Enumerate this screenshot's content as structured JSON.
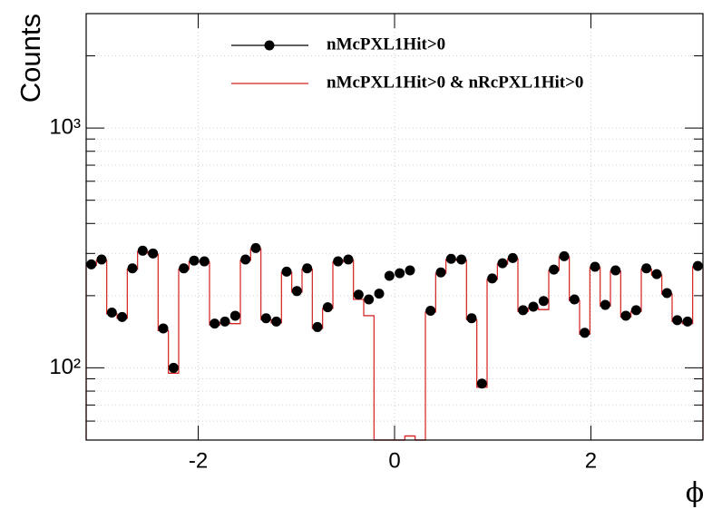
{
  "chart_data": {
    "type": "histogram",
    "ylabel": "Counts",
    "xlabel": "ϕ",
    "log_y": true,
    "grid": true,
    "legend": "top",
    "xlim": [
      -3.1416,
      3.1416
    ],
    "ylim": [
      50,
      3000
    ],
    "xticks": [
      -2,
      0,
      2
    ],
    "yticks": [
      {
        "value": 100,
        "label": "10²"
      },
      {
        "value": 1000,
        "label": "10³"
      }
    ],
    "yminorticks": [
      60,
      70,
      80,
      90,
      200,
      300,
      400,
      500,
      600,
      700,
      800,
      900,
      2000,
      3000
    ],
    "bins": [
      -3.1416,
      -3.0369,
      -2.9322,
      -2.8274,
      -2.7227,
      -2.618,
      -2.5133,
      -2.4086,
      -2.3038,
      -2.1991,
      -2.0944,
      -1.9897,
      -1.885,
      -1.7802,
      -1.6755,
      -1.5708,
      -1.4661,
      -1.3614,
      -1.2566,
      -1.1519,
      -1.0472,
      -0.9425,
      -0.8378,
      -0.733,
      -0.6283,
      -0.5236,
      -0.4189,
      -0.3142,
      -0.2094,
      -0.1047,
      0,
      0.1047,
      0.2094,
      0.3142,
      0.4189,
      0.5236,
      0.6283,
      0.733,
      0.8378,
      0.9425,
      1.0472,
      1.1519,
      1.2566,
      1.3614,
      1.4661,
      1.5708,
      1.6755,
      1.7802,
      1.885,
      1.9897,
      2.0944,
      2.1991,
      2.3038,
      2.4086,
      2.5133,
      2.618,
      2.7227,
      2.8274,
      2.9322,
      3.0369,
      3.1416
    ],
    "series": [
      {
        "name": "nMcPXL1Hit>0",
        "color": "#000000",
        "style": "markers",
        "values": [
          270,
          283,
          170,
          163,
          260,
          308,
          300,
          146,
          100,
          260,
          280,
          278,
          153,
          156,
          165,
          283,
          316,
          161,
          156,
          252,
          209,
          260,
          148,
          179,
          278,
          283,
          202,
          193,
          204,
          242,
          248,
          255,
          null,
          173,
          250,
          285,
          283,
          161,
          86,
          236,
          273,
          287,
          174,
          180,
          190,
          257,
          292,
          193,
          140,
          264,
          183,
          255,
          165,
          174,
          260,
          246,
          205,
          158,
          156,
          266
        ]
      },
      {
        "name": "nMcPXL1Hit>0 & nRcPXL1Hit>0",
        "color": "#d42020",
        "style": "step",
        "values": [
          268,
          281,
          168,
          161,
          258,
          306,
          298,
          143,
          95,
          258,
          278,
          276,
          151,
          154,
          153,
          281,
          314,
          159,
          154,
          250,
          207,
          258,
          146,
          177,
          276,
          281,
          193,
          165,
          0,
          0,
          0,
          52,
          0,
          171,
          248,
          283,
          281,
          159,
          83,
          234,
          271,
          285,
          172,
          178,
          175,
          255,
          290,
          191,
          138,
          262,
          181,
          253,
          163,
          172,
          258,
          244,
          203,
          156,
          153,
          264
        ]
      }
    ]
  }
}
